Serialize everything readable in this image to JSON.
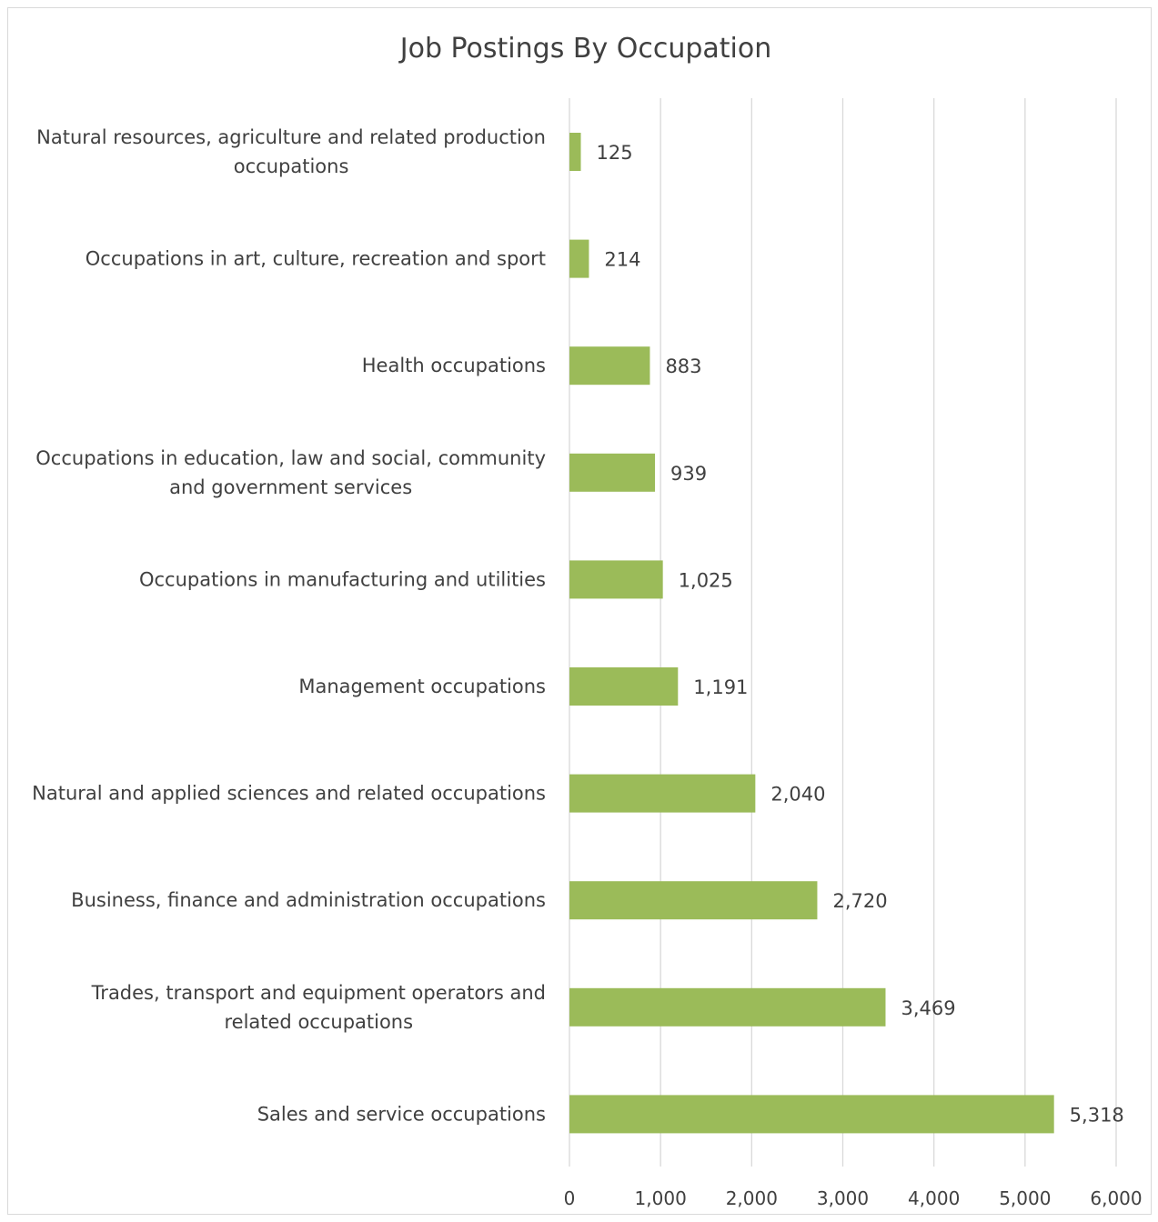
{
  "chart_data": {
    "type": "bar",
    "orientation": "horizontal",
    "title": "Job Postings By Occupation",
    "xlabel": "",
    "ylabel": "",
    "categories": [
      "Natural resources, agriculture and related production occupations",
      "Occupations in art, culture, recreation and sport",
      "Health occupations",
      "Occupations in education, law and social, community and government services",
      "Occupations in manufacturing and utilities",
      "Management occupations",
      "Natural and applied sciences and related occupations",
      "Business, finance and administration occupations",
      "Trades, transport and equipment operators and related occupations",
      "Sales and service occupations"
    ],
    "category_label_lines": [
      [
        "Natural resources, agriculture and related production",
        "occupations"
      ],
      [
        "Occupations in art, culture, recreation and sport"
      ],
      [
        "Health occupations"
      ],
      [
        "Occupations in education, law and social, community",
        "and government services"
      ],
      [
        "Occupations in manufacturing and utilities"
      ],
      [
        "Management occupations"
      ],
      [
        "Natural and applied sciences and related occupations"
      ],
      [
        "Business, finance and administration occupations"
      ],
      [
        "Trades, transport and equipment operators and",
        "related occupations"
      ],
      [
        "Sales and service occupations"
      ]
    ],
    "values": [
      125,
      214,
      883,
      939,
      1025,
      1191,
      2040,
      2720,
      3469,
      5318
    ],
    "data_labels": [
      "125",
      "214",
      "883",
      "939",
      "1,025",
      "1,191",
      "2,040",
      "2,720",
      "3,469",
      "5,318"
    ],
    "xlim": [
      0,
      6000
    ],
    "x_ticks": [
      0,
      1000,
      2000,
      3000,
      4000,
      5000,
      6000
    ],
    "x_tick_labels": [
      "0",
      "1,000",
      "2,000",
      "3,000",
      "4,000",
      "5,000",
      "6,000"
    ],
    "grid": "vertical",
    "legend": "none",
    "colors": {
      "bar": "#9BBB59",
      "grid": "#d9d9d9",
      "text": "#404040"
    }
  }
}
